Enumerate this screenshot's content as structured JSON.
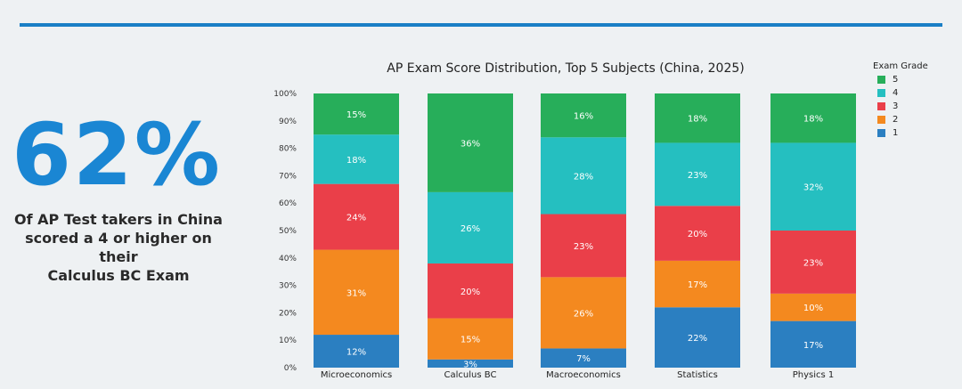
{
  "headline": {
    "value": "62%",
    "caption_line1": "Of AP Test takers in China",
    "caption_line2": "scored a 4 or higher on their",
    "caption_line3": "Calculus BC Exam"
  },
  "chart_data": {
    "type": "bar",
    "stacked": true,
    "title": "AP Exam Score Distribution, Top 5 Subjects (China, 2025)",
    "xlabel": "",
    "ylabel": "",
    "ylim": [
      0,
      100
    ],
    "y_ticks": [
      "0%",
      "10%",
      "20%",
      "30%",
      "40%",
      "50%",
      "60%",
      "70%",
      "80%",
      "90%",
      "100%"
    ],
    "categories": [
      "Microeconomics",
      "Calculus BC",
      "Macroeconomics",
      "Statistics",
      "Physics 1"
    ],
    "series": [
      {
        "name": "1",
        "color": "#2b7fc1",
        "values": [
          12,
          3,
          7,
          22,
          17
        ]
      },
      {
        "name": "2",
        "color": "#f4891f",
        "values": [
          31,
          15,
          26,
          17,
          10
        ]
      },
      {
        "name": "3",
        "color": "#ea3f49",
        "values": [
          24,
          20,
          23,
          20,
          23
        ]
      },
      {
        "name": "4",
        "color": "#25bfc0",
        "values": [
          18,
          26,
          28,
          23,
          32
        ]
      },
      {
        "name": "5",
        "color": "#27ae5a",
        "values": [
          15,
          36,
          16,
          18,
          18
        ]
      }
    ],
    "legend": {
      "title": "Exam Grade",
      "position": "top-right",
      "order": [
        "5",
        "4",
        "3",
        "2",
        "1"
      ]
    }
  }
}
